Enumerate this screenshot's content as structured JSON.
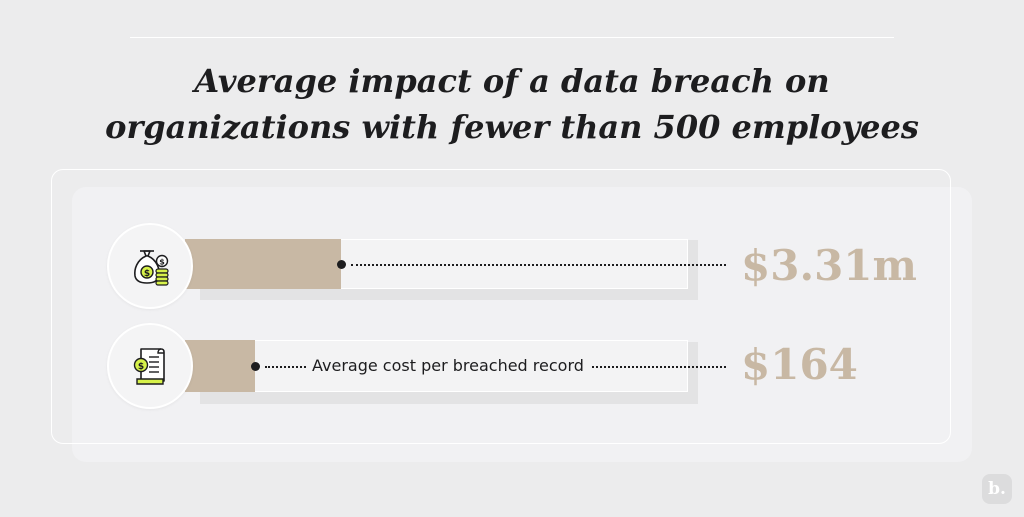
{
  "title": {
    "line1": "Average impact of a data breach on",
    "line2": "organizations with fewer than 500 employees"
  },
  "colors": {
    "background": "#ececed",
    "bar_fill": "#c8b8a4",
    "value_text": "#c8b8a4",
    "icon_accent": "#d7f24a",
    "ink": "#1d1d1f"
  },
  "rows": [
    {
      "icon": "money-bag-coins-icon",
      "label": "",
      "value": "$3.31m",
      "fill_fraction": 0.31
    },
    {
      "icon": "invoice-receipt-icon",
      "label": "Average cost per breached record",
      "value": "$164",
      "fill_fraction": 0.14
    }
  ],
  "chart_data": {
    "type": "bar",
    "title": "Average impact of a data breach on organizations with fewer than 500 employees",
    "categories": [
      "",
      "Average cost per breached record"
    ],
    "value_labels": [
      "$3.31m",
      "$164"
    ],
    "values": [
      3310000,
      164
    ],
    "xlabel": "",
    "ylabel": ""
  },
  "logo": {
    "text": "b."
  }
}
